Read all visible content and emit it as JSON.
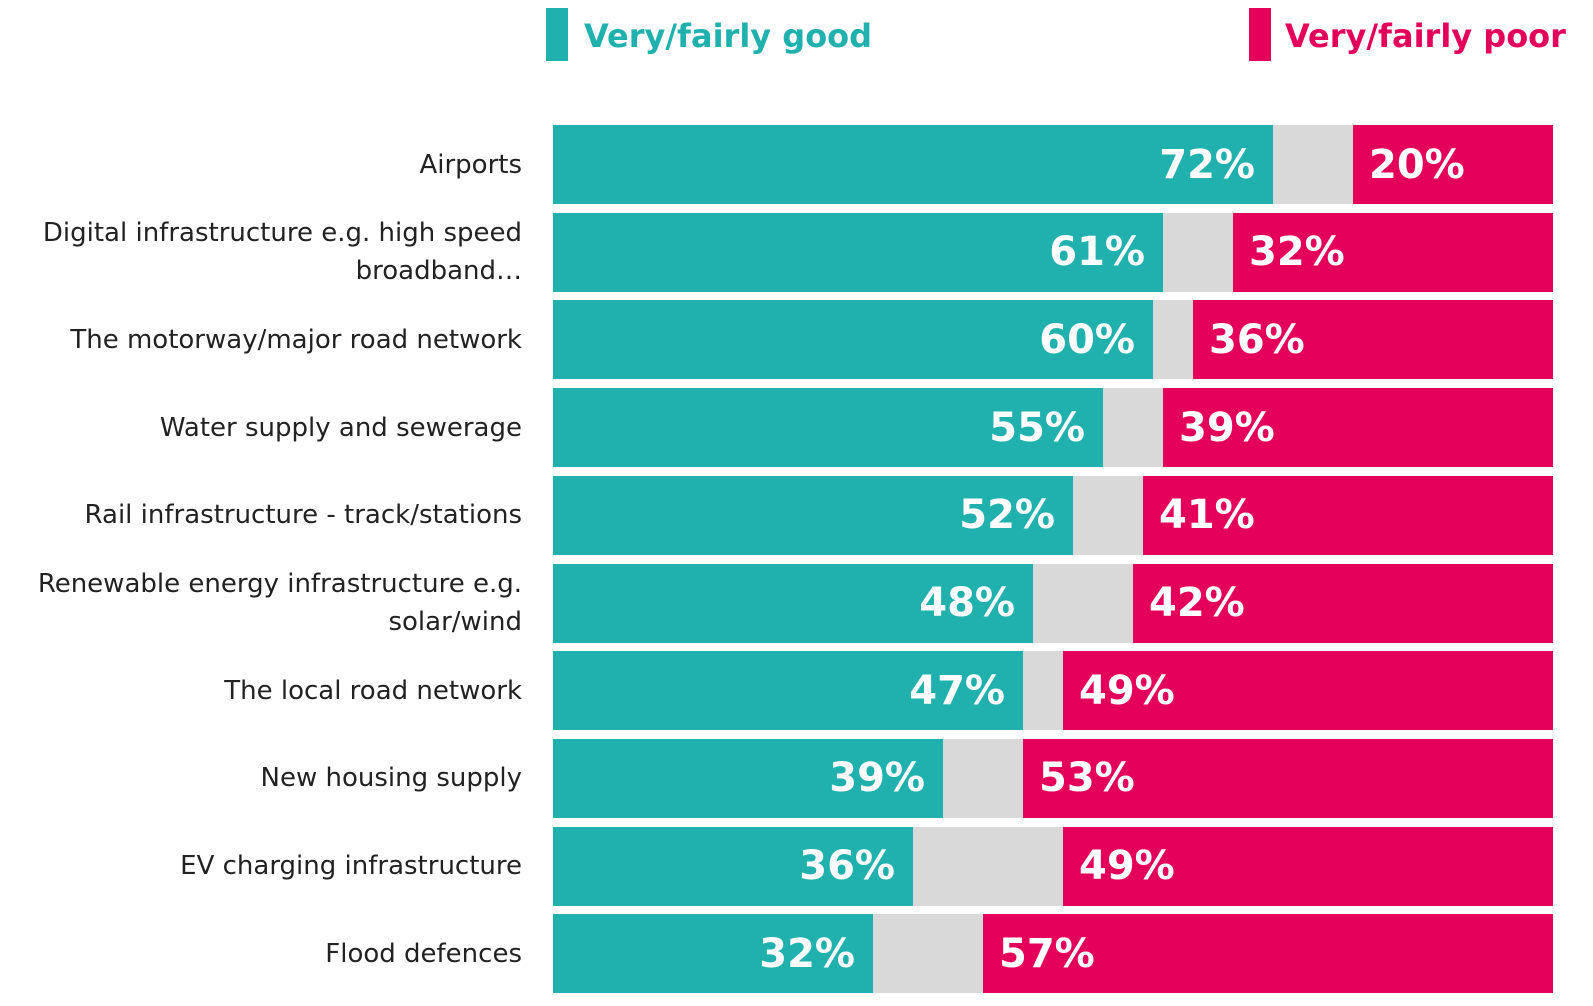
{
  "chart_data": {
    "type": "stacked_bar_horizontal",
    "categories": [
      "Airports",
      "Digital infrastructure e.g. high speed broadband…",
      "The motorway/major road network",
      "Water supply and sewerage",
      "Rail infrastructure - track/stations",
      "Renewable energy infrastructure e.g. solar/wind",
      "The local road network",
      "New housing supply",
      "EV charging infrastructure",
      "Flood defences"
    ],
    "series": [
      {
        "name": "Very/fairly good",
        "color": "#20b0ad",
        "values": [
          72,
          61,
          60,
          55,
          52,
          48,
          47,
          39,
          36,
          32
        ],
        "value_labels": [
          "72%",
          "61%",
          "60%",
          "55%",
          "52%",
          "48%",
          "47%",
          "39%",
          "36%",
          "32%"
        ]
      },
      {
        "color": "#d9d9d9",
        "values": [
          8,
          7,
          4,
          6,
          7,
          10,
          4,
          8,
          15,
          11
        ]
      },
      {
        "name": "Very/fairly poor",
        "color": "#e4005a",
        "values": [
          20,
          32,
          36,
          39,
          41,
          42,
          49,
          53,
          49,
          57
        ],
        "value_labels": [
          "20%",
          "32%",
          "36%",
          "39%",
          "41%",
          "42%",
          "49%",
          "53%",
          "49%",
          "57%"
        ]
      }
    ],
    "xlim": [
      0,
      100
    ],
    "legend": "top"
  }
}
